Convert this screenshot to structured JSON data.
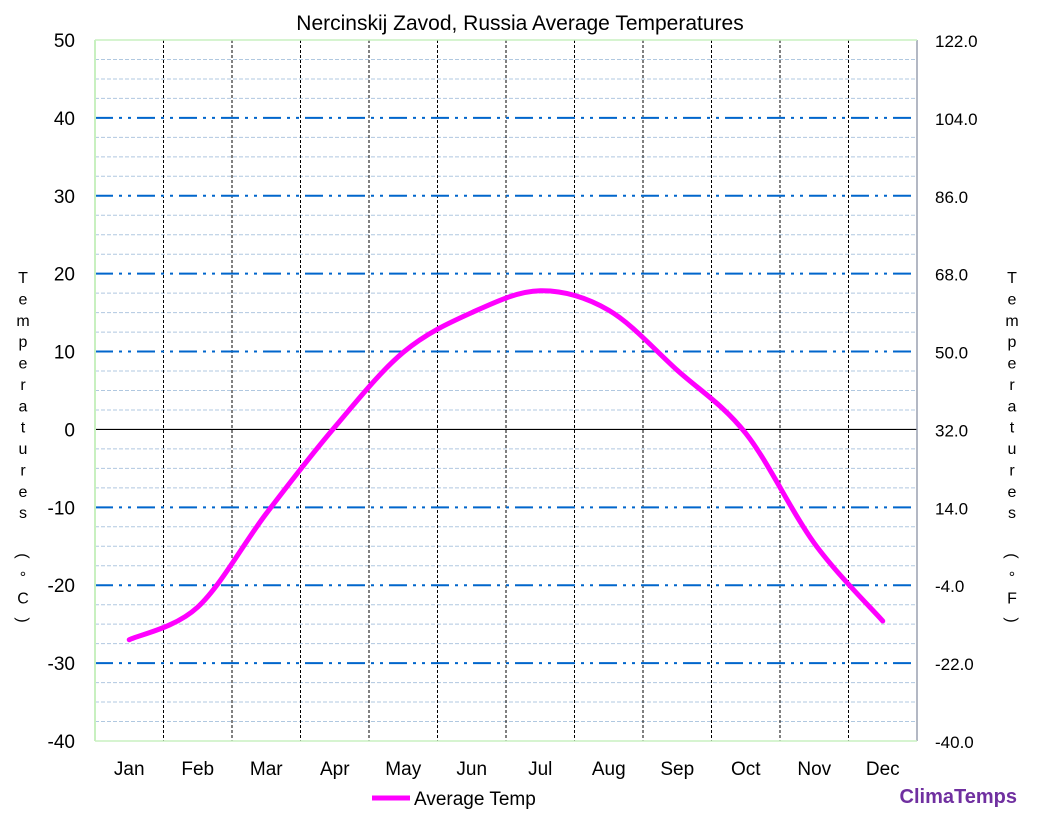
{
  "chart_data": {
    "type": "line",
    "title": "Nercinskij Zavod, Russia Average Temperatures",
    "categories": [
      "Jan",
      "Feb",
      "Mar",
      "Apr",
      "May",
      "Jun",
      "Jul",
      "Aug",
      "Sep",
      "Oct",
      "Nov",
      "Dec"
    ],
    "series": [
      {
        "name": "Average Temp",
        "color": "#ff00ff",
        "values": [
          -27.0,
          -22.8,
          -10.8,
          0.3,
          9.9,
          15.0,
          17.8,
          15.3,
          7.6,
          -0.5,
          -14.6,
          -24.6
        ]
      }
    ],
    "ylabel_left": "Temperatures (°C)",
    "ylabel_right": "Temperatures (°F)",
    "ylim": [
      -40,
      50
    ],
    "yticks_left": [
      "50",
      "40",
      "30",
      "20",
      "10",
      "0",
      "-10",
      "-20",
      "-30",
      "-40"
    ],
    "yticks_right": [
      "122.0",
      "104.0",
      "86.0",
      "68.0",
      "50.0",
      "32.0",
      "14.0",
      "-4.0",
      "-22.0",
      "-40.0"
    ],
    "grid": true,
    "legend_placement": "bottom",
    "colors": {
      "major_grid": "#0066cc",
      "minor_grid": "#b0c8e0",
      "month_grid": "#000000",
      "zero_line": "#000000"
    }
  },
  "branding": {
    "text": "ClimaTemps",
    "color": "#7030a0"
  }
}
